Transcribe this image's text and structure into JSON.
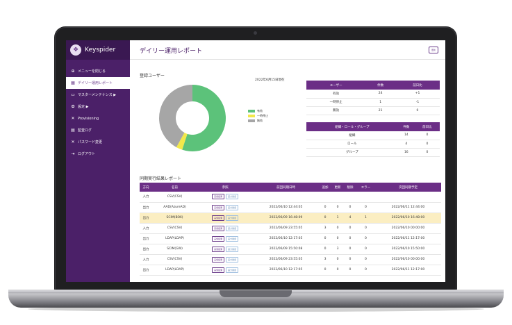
{
  "app": {
    "name": "Keyspider"
  },
  "sidebar": {
    "items": [
      {
        "icon": "menu-icon",
        "label": "メニューを閉じる",
        "active": false
      },
      {
        "icon": "report-icon",
        "label": "デイリー運用レポート",
        "active": true
      },
      {
        "icon": "monitor-icon",
        "label": "マスターメンテナンス ▶",
        "active": false
      },
      {
        "icon": "gear-icon",
        "label": "設定 ▶",
        "active": false
      },
      {
        "icon": "tools-icon",
        "label": "Provisioning",
        "active": false
      },
      {
        "icon": "log-icon",
        "label": "監査ログ",
        "active": false
      },
      {
        "icon": "key-icon",
        "label": "パスワード変更",
        "active": false
      },
      {
        "icon": "logout-icon",
        "label": "ログアウト",
        "active": false
      }
    ]
  },
  "header": {
    "title": "デイリー運用レポート",
    "update_label": "更新"
  },
  "registered": {
    "title": "登録ユーザー",
    "date": "2022年6月15日現在",
    "legend": [
      {
        "label": "有効",
        "color": "#5cc27a"
      },
      {
        "label": "一時停止",
        "color": "#f2e84a"
      },
      {
        "label": "無効",
        "color": "#a6a6a6"
      }
    ],
    "donut_values": [
      55,
      3,
      42
    ]
  },
  "user_table": {
    "headers": [
      "ユーザー",
      "件数",
      "前日比"
    ],
    "rows": [
      [
        "有効",
        "24",
        "+1"
      ],
      [
        "一時停止",
        "1",
        "-1"
      ],
      [
        "無効",
        "21",
        "0"
      ]
    ]
  },
  "group_table": {
    "headers": [
      "組織・ロール・グループ",
      "件数",
      "前日比"
    ],
    "rows": [
      [
        "組織",
        "14",
        "0"
      ],
      [
        "ロール",
        "4",
        "0"
      ],
      [
        "グループ",
        "16",
        "0"
      ]
    ]
  },
  "report": {
    "title": "同期実行結果レポート",
    "headers": [
      "方向",
      "名前",
      "参照",
      "前回同期日時",
      "追加",
      "更新",
      "削除",
      "エラー",
      "次回同期予定"
    ],
    "btn_detail": "実施結果",
    "btn_diff": "差分確認",
    "rows": [
      {
        "dir": "入力",
        "name": "CSV(CSV)",
        "last": "",
        "add": "",
        "upd": "",
        "del": "",
        "err": "",
        "next": "",
        "hl": false
      },
      {
        "dir": "出力",
        "name": "AAD(AzureAD)",
        "last": "2022/06/10 12:44:05",
        "add": "0",
        "upd": "0",
        "del": "0",
        "err": "0",
        "next": "2022/06/11 12:44:00",
        "hl": false
      },
      {
        "dir": "出力",
        "name": "SCIM(BOX)",
        "last": "2022/06/09 16:48:09",
        "add": "0",
        "upd": "1",
        "del": "4",
        "err": "1",
        "next": "2022/06/10 16:48:00",
        "hl": true
      },
      {
        "dir": "入力",
        "name": "CSV(CSV)",
        "last": "2022/06/09 23:55:05",
        "add": "3",
        "upd": "0",
        "del": "0",
        "err": "0",
        "next": "2022/06/10 00:00:00",
        "hl": false
      },
      {
        "dir": "出力",
        "name": "LDAP(LDAP)",
        "last": "2022/06/10 12:17:05",
        "add": "0",
        "upd": "0",
        "del": "0",
        "err": "0",
        "next": "2022/06/11 12:17:00",
        "hl": false
      },
      {
        "dir": "出力",
        "name": "SCIM(GW)",
        "last": "2022/06/09 15:50:08",
        "add": "0",
        "upd": "3",
        "del": "0",
        "err": "0",
        "next": "2022/06/10 15:50:00",
        "hl": false
      },
      {
        "dir": "入力",
        "name": "CSV(CSV)",
        "last": "2022/06/09 23:55:05",
        "add": "3",
        "upd": "0",
        "del": "0",
        "err": "0",
        "next": "2022/06/10 00:00:00",
        "hl": false
      },
      {
        "dir": "出力",
        "name": "LDAP(LDAP)",
        "last": "2022/06/10 12:17:05",
        "add": "0",
        "upd": "0",
        "del": "0",
        "err": "0",
        "next": "2022/06/11 12:17:00",
        "hl": false
      }
    ]
  }
}
